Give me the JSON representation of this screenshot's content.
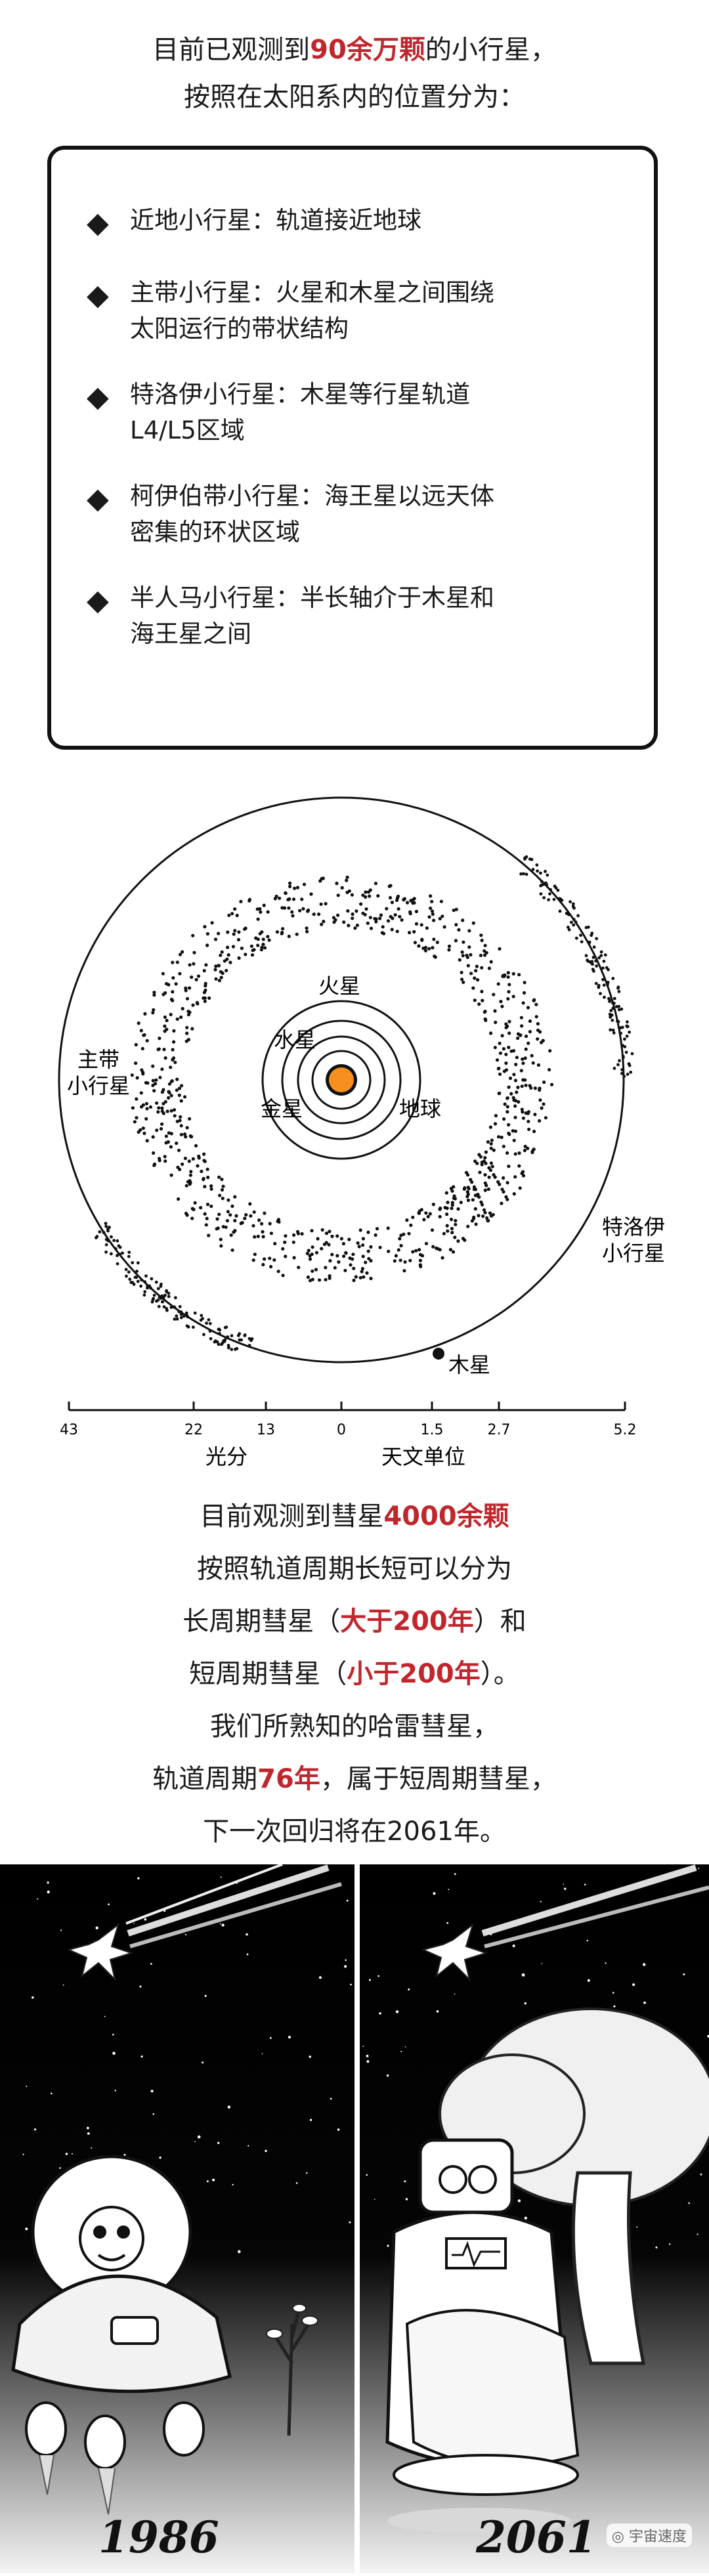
{
  "intro": {
    "line1_pre": "目前已观测到",
    "line1_highlight": "90余万颗",
    "line1_post": "的小行星，",
    "line2": "按照在太阳系内的位置分为："
  },
  "asteroid_types": [
    {
      "line1": "近地小行星：轨道接近地球",
      "line2": ""
    },
    {
      "line1": "主带小行星：火星和木星之间围绕",
      "line2": "太阳运行的带状结构"
    },
    {
      "line1": "特洛伊小行星：木星等行星轨道",
      "line2": "L4/L5区域"
    },
    {
      "line1": "柯伊伯带小行星：海王星以远天体",
      "line2": "密集的环状区域"
    },
    {
      "line1": "半人马小行星：半长轴介于木星和",
      "line2": "海王星之间"
    }
  ],
  "bullet_icon": "black-diamond-icon",
  "diagram": {
    "labels": {
      "mars": "火星",
      "mercury": "水星",
      "venus": "金星",
      "earth": "地球",
      "main_belt_1": "主带",
      "main_belt_2": "小行星",
      "trojan_1": "特洛伊",
      "trojan_2": "小行星",
      "jupiter": "木星"
    },
    "axis_ticks": [
      "43",
      "22",
      "13",
      "0",
      "1.5",
      "2.7",
      "5.2"
    ],
    "axis_label_left": "光分",
    "axis_label_right": "天文单位",
    "sun_color": "#f5901e"
  },
  "comet": {
    "line1_pre": "目前观测到彗星",
    "line1_highlight": "4000余颗",
    "line2": "按照轨道周期长短可以分为",
    "line3_pre": "长周期彗星（",
    "line3_highlight": "大于200年",
    "line3_post": "）和",
    "line4_pre": "短周期彗星（",
    "line4_highlight": "小于200年",
    "line4_post": "）。",
    "line5": "我们所熟知的哈雷彗星，",
    "line6_pre": "轨道周期",
    "line6_highlight": "76年",
    "line6_post": "，属于短周期彗星，",
    "line7": "下一次回归将在2061年。"
  },
  "panels": {
    "year_left": "1986",
    "year_right": "2061",
    "watermark": "宇宙速度"
  },
  "colors": {
    "highlight": "#c0272d",
    "sun": "#f5901e"
  }
}
